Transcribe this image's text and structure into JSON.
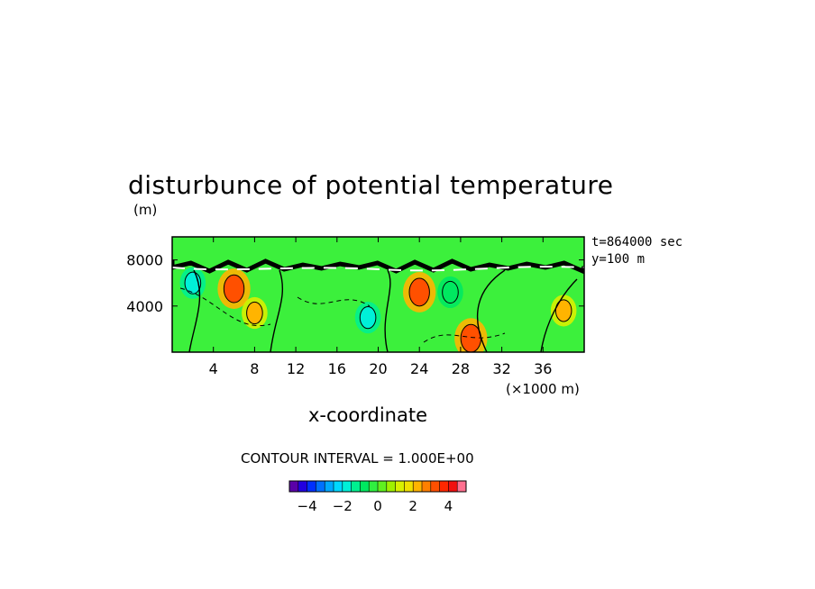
{
  "chart_data": {
    "type": "heatmap",
    "title": "disturbunce of potential temperature",
    "xlabel": "x-coordinate",
    "x_unit_label": "(×1000 m)",
    "y_unit_label": "(m)",
    "xticks": [
      "4",
      "8",
      "12",
      "16",
      "20",
      "24",
      "28",
      "32",
      "36"
    ],
    "xtick_values": [
      4,
      8,
      12,
      16,
      20,
      24,
      28,
      32,
      36
    ],
    "xlim": [
      0,
      40
    ],
    "yticks": [
      "4000",
      "8000"
    ],
    "ytick_values": [
      4000,
      8000
    ],
    "ylim": [
      0,
      10000
    ],
    "annotations": [
      "t=864000 sec",
      "y=100 m"
    ],
    "contour_interval_label": "CONTOUR INTERVAL = 1.000E+00",
    "colorbar": {
      "ticks": [
        "−4",
        "−2",
        "0",
        "2",
        "4"
      ],
      "tick_values": [
        -4,
        -2,
        0,
        2,
        4
      ],
      "range": [
        -5,
        5
      ],
      "colors": [
        "#5a00a8",
        "#2200e0",
        "#0030ff",
        "#0070ff",
        "#00a8ff",
        "#00d8ff",
        "#00f0d8",
        "#00f090",
        "#00e860",
        "#30f040",
        "#60f020",
        "#a0f000",
        "#d8f000",
        "#f0e000",
        "#ffb400",
        "#ff8000",
        "#ff5000",
        "#ff2800",
        "#f01010",
        "#ff7090"
      ]
    },
    "features": [
      {
        "label": "warm anomaly",
        "x": 6,
        "y": 5500,
        "value": 3
      },
      {
        "label": "warm anomaly",
        "x": 24,
        "y": 5200,
        "value": 3
      },
      {
        "label": "warm anomaly",
        "x": 29,
        "y": 1200,
        "value": 3
      },
      {
        "label": "warm anomaly",
        "x": 8,
        "y": 3400,
        "value": 2
      },
      {
        "label": "warm anomaly",
        "x": 38,
        "y": 3600,
        "value": 2
      },
      {
        "label": "cool anomaly",
        "x": 2,
        "y": 6000,
        "value": -2
      },
      {
        "label": "cool anomaly",
        "x": 19,
        "y": 3000,
        "value": -2
      },
      {
        "label": "cool anomaly",
        "x": 27,
        "y": 5200,
        "value": -1
      }
    ]
  }
}
